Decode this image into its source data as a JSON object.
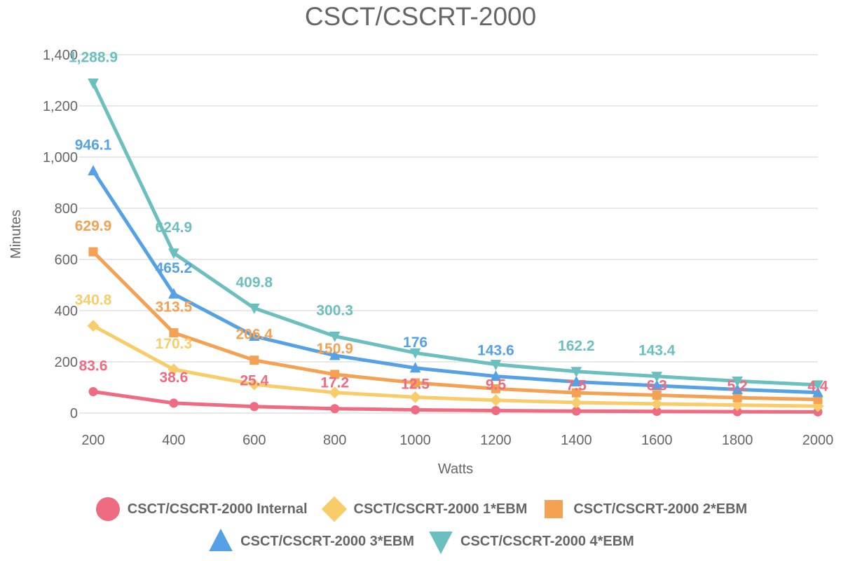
{
  "chart_data": {
    "type": "line",
    "title": "CSCT/CSCRT-2000",
    "xlabel": "Watts",
    "ylabel": "Minutes",
    "x": [
      200,
      400,
      600,
      800,
      1000,
      1200,
      1400,
      1600,
      1800,
      2000
    ],
    "xticks": [
      "200",
      "400",
      "600",
      "800",
      "1000",
      "1200",
      "1400",
      "1600",
      "1800",
      "2000"
    ],
    "ylim": [
      0,
      1400
    ],
    "yticks": [
      "0",
      "200",
      "400",
      "600",
      "800",
      "1,000",
      "1,200",
      "1,400"
    ],
    "ytick_values": [
      0,
      200,
      400,
      600,
      800,
      1000,
      1200,
      1400
    ],
    "grid": true,
    "legend_position": "bottom",
    "series": [
      {
        "name": "CSCT/CSCRT-2000 Internal",
        "color": "#EE6B82",
        "marker": "circle",
        "values": [
          83.6,
          38.6,
          25.4,
          17.2,
          12.5,
          9.5,
          7.5,
          6.3,
          5.2,
          4.4
        ],
        "data_labels": [
          "83.6",
          "38.6",
          "25.4",
          "17.2",
          "12.5",
          "9.5",
          "7.5",
          "6.3",
          "5.2",
          "4.4"
        ]
      },
      {
        "name": "CSCT/CSCRT-2000 1*EBM",
        "color": "#F8CD69",
        "marker": "diamond",
        "values": [
          340.8,
          170.3,
          112,
          80,
          62,
          50,
          41,
          36,
          31,
          27
        ],
        "data_labels": [
          "340.8",
          "170.3",
          "",
          "",
          "",
          "",
          "",
          "",
          "",
          ""
        ]
      },
      {
        "name": "CSCT/CSCRT-2000 2*EBM",
        "color": "#F4A153",
        "marker": "square",
        "values": [
          629.9,
          313.5,
          206.4,
          150.9,
          118,
          95,
          79,
          70,
          60,
          53
        ],
        "data_labels": [
          "629.9",
          "313.5",
          "206.4",
          "150.9",
          "",
          "",
          "",
          "",
          "",
          ""
        ]
      },
      {
        "name": "CSCT/CSCRT-2000 3*EBM",
        "color": "#55A1E5",
        "marker": "triangle",
        "values": [
          946.1,
          465.2,
          300,
          225,
          176,
          143.6,
          122,
          107,
          92,
          80
        ],
        "data_labels": [
          "946.1",
          "465.2",
          "",
          "",
          "176",
          "143.6",
          "",
          "",
          "",
          ""
        ]
      },
      {
        "name": "CSCT/CSCRT-2000 4*EBM",
        "color": "#6CBFBF",
        "marker": "triangle-down",
        "values": [
          1288.9,
          624.9,
          409.8,
          300.3,
          235,
          190,
          162.2,
          143.4,
          125,
          110
        ],
        "data_labels": [
          "1,288.9",
          "624.9",
          "409.8",
          "300.3",
          "",
          "",
          "162.2",
          "143.4",
          "",
          ""
        ]
      }
    ]
  }
}
